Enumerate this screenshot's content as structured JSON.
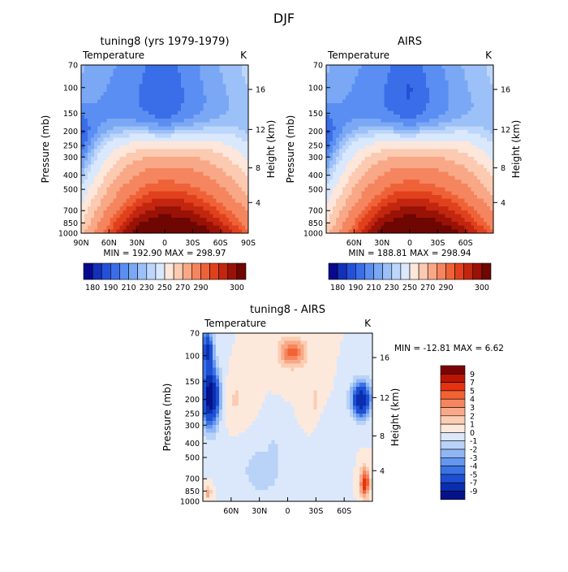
{
  "figure_title": "DJF",
  "chart_data": [
    {
      "type": "heatmap",
      "title": "tuning8 (yrs 1979-1979)",
      "left_label": "Temperature",
      "right_label": "K",
      "xlabel": "",
      "ylabel": "Pressure (mb)",
      "y2label": "Height (km)",
      "x_ticks": [
        "90N",
        "60N",
        "30N",
        "0",
        "30S",
        "60S",
        "90S"
      ],
      "y_ticks": [
        "70",
        "100",
        "150",
        "200",
        "250",
        "300",
        "400",
        "500",
        "700",
        "850",
        "1000"
      ],
      "y2_ticks": [
        "16",
        "12",
        "8",
        "4"
      ],
      "stats": "MIN = 192.90   MAX = 298.97",
      "min": 192.9,
      "max": 298.97,
      "colorbar_labels": [
        "180",
        "190",
        "210",
        "230",
        "250",
        "270",
        "290",
        "300"
      ],
      "field": "control"
    },
    {
      "type": "heatmap",
      "title": "AIRS",
      "left_label": "Temperature",
      "right_label": "K",
      "xlabel": "",
      "ylabel": "Pressure (mb)",
      "y2label": "Height (km)",
      "x_ticks": [
        "60N",
        "30N",
        "0",
        "30S",
        "60S"
      ],
      "y_ticks": [
        "70",
        "100",
        "150",
        "200",
        "250",
        "300",
        "400",
        "500",
        "700",
        "850",
        "1000"
      ],
      "y2_ticks": [
        "16",
        "12",
        "8",
        "4"
      ],
      "stats": "MIN = 188.81   MAX = 298.94",
      "min": 188.81,
      "max": 298.94,
      "colorbar_labels": [
        "180",
        "190",
        "210",
        "230",
        "250",
        "270",
        "290",
        "300"
      ],
      "field": "obs"
    },
    {
      "type": "heatmap",
      "title": "tuning8 - AIRS",
      "left_label": "Temperature",
      "right_label": "K",
      "xlabel": "",
      "ylabel": "Pressure (mb)",
      "y2label": "Height (km)",
      "x_ticks": [
        "60N",
        "30N",
        "0",
        "30S",
        "60S"
      ],
      "y_ticks": [
        "70",
        "100",
        "150",
        "200",
        "250",
        "300",
        "400",
        "500",
        "700",
        "850",
        "1000"
      ],
      "y2_ticks": [
        "16",
        "12",
        "8",
        "4"
      ],
      "stats": "MIN = -12.81   MAX =    6.62",
      "min": -12.81,
      "max": 6.62,
      "colorbar_labels": [
        "9",
        "7",
        "5",
        "4",
        "3",
        "2",
        "1",
        "0",
        "-1",
        "-2",
        "-3",
        "-4",
        "-5",
        "-7",
        "-9"
      ],
      "field": "diff"
    }
  ],
  "colors": {
    "temperature_scale": [
      "#08088f",
      "#1331b8",
      "#2450d8",
      "#3a6ee8",
      "#5a8ef2",
      "#7aa8f5",
      "#9cc0f8",
      "#bdd6fb",
      "#d9e8fd",
      "#fde6da",
      "#fbcab1",
      "#f8a886",
      "#f5855e",
      "#ef6238",
      "#e0411c",
      "#c2260f",
      "#9a1206",
      "#6e0602"
    ],
    "difference_scale": [
      "#7a0404",
      "#b91606",
      "#e4330f",
      "#f36232",
      "#f5865f",
      "#f8aa88",
      "#fbcdb2",
      "#fde9dc",
      "#dbe8fb",
      "#b9d2f8",
      "#90b6f4",
      "#6596ee",
      "#3a73e4",
      "#1d4fd2",
      "#0b2eb0",
      "#06128a"
    ]
  }
}
